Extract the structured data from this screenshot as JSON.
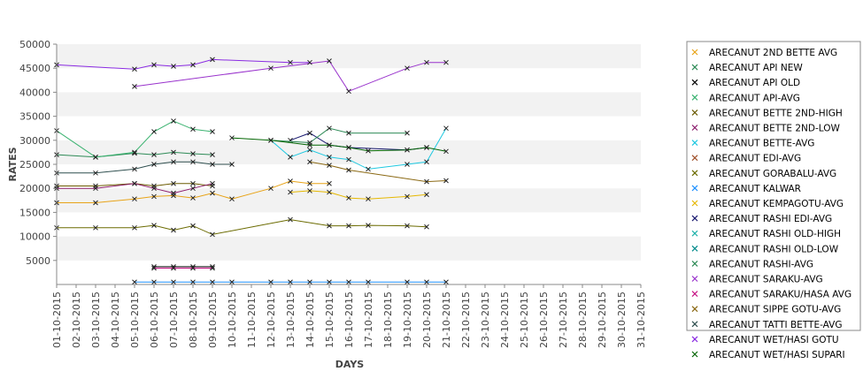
{
  "chart_data": {
    "type": "line",
    "xlabel": "DAYS",
    "ylabel": "RATES",
    "ylim": [
      0,
      50000
    ],
    "y_ticks": [
      5000,
      10000,
      15000,
      20000,
      25000,
      30000,
      35000,
      40000,
      45000,
      50000
    ],
    "grid": "alternating horizontal bands",
    "legend_position": "right",
    "categories": [
      "01-10-2015",
      "02-10-2015",
      "03-10-2015",
      "04-10-2015",
      "05-10-2015",
      "06-10-2015",
      "07-10-2015",
      "08-10-2015",
      "09-10-2015",
      "10-10-2015",
      "11-10-2015",
      "12-10-2015",
      "13-10-2015",
      "14-10-2015",
      "15-10-2015",
      "16-10-2015",
      "17-10-2015",
      "18-10-2015",
      "19-10-2015",
      "20-10-2015",
      "21-10-2015",
      "22-10-2015",
      "23-10-2015",
      "24-10-2015",
      "25-10-2015",
      "26-10-2015",
      "27-10-2015",
      "28-10-2015",
      "29-10-2015",
      "30-10-2015",
      "31-10-2015"
    ],
    "series": [
      {
        "name": "ARECANUT 2ND BETTE AVG",
        "color": "#e8a317",
        "values": [
          17000,
          null,
          17000,
          null,
          17800,
          18300,
          18500,
          18000,
          19000,
          17800,
          null,
          20000,
          21500,
          21000,
          21000,
          null,
          null,
          null,
          null,
          null,
          null,
          null,
          null,
          null,
          null,
          null,
          null,
          null,
          null,
          null,
          null
        ]
      },
      {
        "name": "ARECANUT API NEW",
        "color": "#2e8b57",
        "values": [
          27000,
          null,
          26500,
          null,
          27300,
          27000,
          27500,
          27200,
          27000,
          null,
          null,
          null,
          null,
          null,
          null,
          null,
          null,
          null,
          null,
          null,
          null,
          null,
          null,
          null,
          null,
          null,
          null,
          null,
          null,
          null,
          null
        ]
      },
      {
        "name": "ARECANUT API OLD",
        "color": "#000000",
        "values": [
          null,
          null,
          null,
          null,
          null,
          3700,
          3700,
          3700,
          3700,
          null,
          null,
          null,
          null,
          null,
          null,
          null,
          null,
          null,
          null,
          null,
          null,
          null,
          null,
          null,
          null,
          null,
          null,
          null,
          null,
          null,
          null
        ]
      },
      {
        "name": "ARECANUT API-AVG",
        "color": "#3cb371",
        "values": [
          32000,
          null,
          26500,
          null,
          27500,
          31800,
          34000,
          32300,
          31800,
          null,
          null,
          null,
          null,
          null,
          null,
          null,
          null,
          null,
          null,
          null,
          null,
          null,
          null,
          null,
          null,
          null,
          null,
          null,
          null,
          null,
          null
        ]
      },
      {
        "name": "ARECANUT BETTE 2ND-HIGH",
        "color": "#6b5b00",
        "values": [
          20500,
          null,
          20500,
          null,
          21000,
          20500,
          21000,
          21000,
          20500,
          null,
          null,
          null,
          null,
          null,
          null,
          null,
          null,
          null,
          null,
          null,
          null,
          null,
          null,
          null,
          null,
          null,
          null,
          null,
          null,
          null,
          null
        ]
      },
      {
        "name": "ARECANUT BETTE 2ND-LOW",
        "color": "#8b1a6b",
        "values": [
          20000,
          null,
          20000,
          null,
          21000,
          20000,
          19000,
          20000,
          21000,
          null,
          null,
          null,
          null,
          null,
          null,
          null,
          null,
          null,
          null,
          null,
          null,
          null,
          null,
          null,
          null,
          null,
          null,
          null,
          null,
          null,
          null
        ]
      },
      {
        "name": "ARECANUT BETTE-AVG",
        "color": "#1ec8e0",
        "values": [
          null,
          null,
          null,
          null,
          null,
          null,
          null,
          null,
          null,
          null,
          null,
          30000,
          26500,
          28000,
          26500,
          26000,
          24000,
          null,
          25000,
          25500,
          32500,
          null,
          null,
          null,
          null,
          null,
          null,
          null,
          null,
          null,
          null
        ]
      },
      {
        "name": "ARECANUT EDI-AVG",
        "color": "#a0522d",
        "values": [
          null,
          null,
          null,
          null,
          null,
          null,
          null,
          null,
          null,
          null,
          null,
          null,
          null,
          null,
          null,
          null,
          null,
          null,
          null,
          null,
          null,
          null,
          null,
          null,
          null,
          null,
          null,
          null,
          null,
          null,
          null
        ]
      },
      {
        "name": "ARECANUT GORABALU-AVG",
        "color": "#6b6b00",
        "values": [
          11800,
          null,
          11800,
          null,
          11800,
          12300,
          11300,
          12200,
          10400,
          null,
          null,
          null,
          13500,
          null,
          12200,
          12200,
          12300,
          null,
          12200,
          12000,
          null,
          null,
          null,
          null,
          null,
          null,
          null,
          null,
          null,
          null,
          null
        ]
      },
      {
        "name": "ARECANUT KALWAR",
        "color": "#1e90ff",
        "values": [
          null,
          null,
          null,
          null,
          500,
          500,
          500,
          500,
          500,
          500,
          null,
          500,
          500,
          500,
          500,
          500,
          500,
          null,
          500,
          500,
          500,
          null,
          null,
          null,
          null,
          null,
          null,
          null,
          null,
          null,
          null
        ]
      },
      {
        "name": "ARECANUT KEMPAGOTU-AVG",
        "color": "#e6b800",
        "values": [
          null,
          null,
          null,
          null,
          null,
          null,
          null,
          null,
          null,
          null,
          null,
          null,
          19200,
          19500,
          19200,
          18000,
          17800,
          null,
          18300,
          18700,
          null,
          null,
          null,
          null,
          null,
          null,
          null,
          null,
          null,
          null,
          null
        ]
      },
      {
        "name": "ARECANUT RASHI EDI-AVG",
        "color": "#191970",
        "values": [
          null,
          null,
          null,
          null,
          null,
          null,
          null,
          null,
          null,
          null,
          null,
          null,
          30000,
          31500,
          29000,
          28500,
          null,
          null,
          28000,
          28500,
          null,
          null,
          null,
          null,
          null,
          null,
          null,
          null,
          null,
          null,
          null
        ]
      },
      {
        "name": "ARECANUT RASHI OLD-HIGH",
        "color": "#20b2aa",
        "values": [
          null,
          null,
          null,
          null,
          null,
          null,
          null,
          null,
          null,
          null,
          null,
          null,
          null,
          null,
          null,
          null,
          null,
          null,
          null,
          null,
          null,
          null,
          null,
          null,
          null,
          null,
          null,
          null,
          null,
          null,
          null
        ]
      },
      {
        "name": "ARECANUT RASHI OLD-LOW",
        "color": "#008b8b",
        "values": [
          null,
          null,
          null,
          null,
          null,
          null,
          null,
          null,
          null,
          null,
          null,
          null,
          null,
          null,
          null,
          null,
          null,
          null,
          null,
          null,
          null,
          null,
          null,
          null,
          null,
          null,
          null,
          null,
          null,
          null,
          null
        ]
      },
      {
        "name": "ARECANUT RASHI-AVG",
        "color": "#2e8b57",
        "values": [
          null,
          null,
          null,
          null,
          null,
          null,
          null,
          null,
          null,
          null,
          null,
          30000,
          null,
          29500,
          32500,
          31500,
          null,
          null,
          31500,
          null,
          null,
          null,
          null,
          null,
          null,
          null,
          null,
          null,
          null,
          null,
          null
        ]
      },
      {
        "name": "ARECANUT SARAKU-AVG",
        "color": "#9932cc",
        "values": [
          null,
          null,
          null,
          null,
          41200,
          null,
          null,
          null,
          null,
          null,
          null,
          45000,
          null,
          null,
          46500,
          40200,
          null,
          null,
          45000,
          46200,
          46200,
          null,
          null,
          null,
          null,
          null,
          null,
          null,
          null,
          null,
          null
        ]
      },
      {
        "name": "ARECANUT SARAKU/HASA AVG",
        "color": "#c71585",
        "values": [
          null,
          null,
          null,
          null,
          null,
          3400,
          3400,
          3400,
          3400,
          null,
          null,
          null,
          null,
          null,
          null,
          null,
          null,
          null,
          null,
          null,
          null,
          null,
          null,
          null,
          null,
          null,
          null,
          null,
          null,
          null,
          null
        ]
      },
      {
        "name": "ARECANUT SIPPE GOTU-AVG",
        "color": "#8b6914",
        "values": [
          null,
          null,
          null,
          null,
          null,
          null,
          null,
          null,
          null,
          null,
          null,
          null,
          null,
          25500,
          24800,
          23800,
          null,
          null,
          null,
          21400,
          21600,
          null,
          null,
          null,
          null,
          null,
          null,
          null,
          null,
          null,
          null
        ]
      },
      {
        "name": "ARECANUT TATTI BETTE-AVG",
        "color": "#2f4f4f",
        "values": [
          23200,
          null,
          23200,
          null,
          24000,
          25000,
          25500,
          25500,
          25000,
          25000,
          null,
          null,
          null,
          null,
          null,
          null,
          null,
          null,
          null,
          null,
          null,
          null,
          null,
          null,
          null,
          null,
          null,
          null,
          null,
          null,
          null
        ]
      },
      {
        "name": "ARECANUT WET/HASI GOTU",
        "color": "#8a2be2",
        "values": [
          45700,
          null,
          null,
          null,
          44800,
          45700,
          45400,
          45700,
          46800,
          null,
          null,
          null,
          46200,
          46200,
          null,
          null,
          null,
          null,
          null,
          null,
          null,
          null,
          null,
          null,
          null,
          null,
          null,
          null,
          null,
          null,
          null
        ]
      },
      {
        "name": "ARECANUT WET/HASI SUPARI",
        "color": "#006400",
        "values": [
          null,
          null,
          null,
          null,
          null,
          null,
          null,
          null,
          null,
          30500,
          null,
          30000,
          null,
          29000,
          29000,
          28500,
          27800,
          null,
          28000,
          28500,
          27700,
          null,
          null,
          null,
          null,
          null,
          null,
          null,
          null,
          null,
          null
        ]
      }
    ]
  }
}
